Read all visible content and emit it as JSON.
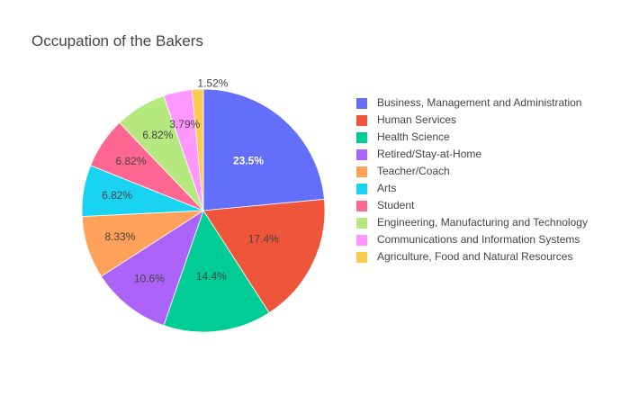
{
  "chart_data": {
    "type": "pie",
    "title": "Occupation of the Bakers",
    "legend_position": "right",
    "slices": [
      {
        "label": "Business, Management and Administration",
        "percent": 23.5,
        "display": "23.5%",
        "color": "#636efa",
        "text_color": "#ffffff"
      },
      {
        "label": "Human Services",
        "percent": 17.4,
        "display": "17.4%",
        "color": "#EF553B",
        "text_color": "#444444"
      },
      {
        "label": "Health Science",
        "percent": 14.4,
        "display": "14.4%",
        "color": "#00cc96",
        "text_color": "#444444"
      },
      {
        "label": "Retired/Stay-at-Home",
        "percent": 10.6,
        "display": "10.6%",
        "color": "#ab63fa",
        "text_color": "#444444"
      },
      {
        "label": "Teacher/Coach",
        "percent": 8.33,
        "display": "8.33%",
        "color": "#FFA15A",
        "text_color": "#444444"
      },
      {
        "label": "Arts",
        "percent": 6.82,
        "display": "6.82%",
        "color": "#19d3f3",
        "text_color": "#444444"
      },
      {
        "label": "Student",
        "percent": 6.82,
        "display": "6.82%",
        "color": "#FF6692",
        "text_color": "#444444"
      },
      {
        "label": "Engineering, Manufacturing and Technology",
        "percent": 6.82,
        "display": "6.82%",
        "color": "#B6E880",
        "text_color": "#444444"
      },
      {
        "label": "Communications and Information Systems",
        "percent": 3.79,
        "display": "3.79%",
        "color": "#FF97FF",
        "text_color": "#444444"
      },
      {
        "label": "Agriculture, Food and Natural Resources",
        "percent": 1.52,
        "display": "1.52%",
        "color": "#FECB52",
        "text_color": "#444444"
      }
    ]
  }
}
